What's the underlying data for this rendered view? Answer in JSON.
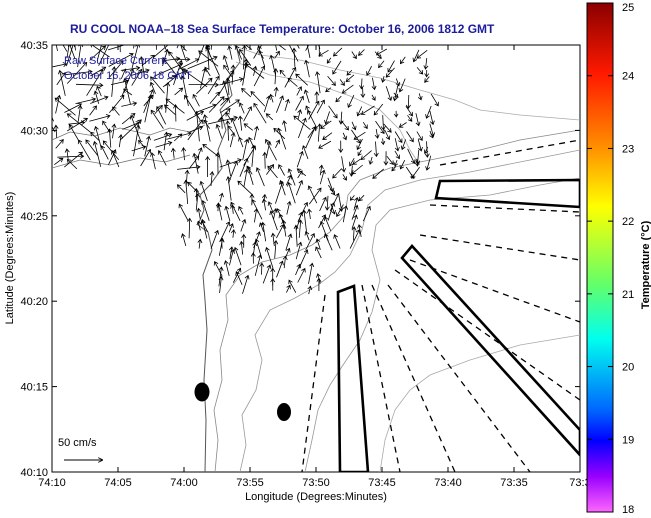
{
  "title": "RU COOL  NOAA–18  Sea Surface Temperature:  October 16, 2006 1812 GMT",
  "legend": {
    "line1": "Raw Surface Current",
    "line2": "October 16, 2006 18 GMT"
  },
  "scale_label": "50 cm/s",
  "x_axis": {
    "label": "Longitude (Degrees:Minutes)",
    "ticks": [
      "74:10",
      "74:05",
      "74:00",
      "73:55",
      "73:50",
      "73:45",
      "73:40",
      "73:35",
      "73:3"
    ]
  },
  "y_axis": {
    "label": "Latitude (Degrees:Minutes)",
    "ticks": [
      "40:35",
      "40:30",
      "40:25",
      "40:20",
      "40:15",
      "40:10"
    ]
  },
  "colorbar": {
    "label": "Temperature (°C)",
    "ticks": [
      "25",
      "24",
      "23",
      "22",
      "21",
      "20",
      "19",
      "18"
    ],
    "colors": [
      "#800000",
      "#ff0000",
      "#ff8000",
      "#ffff00",
      "#80ff80",
      "#00ffff",
      "#0080ff",
      "#0000ff",
      "#8000ff",
      "#ff40ff"
    ]
  }
}
